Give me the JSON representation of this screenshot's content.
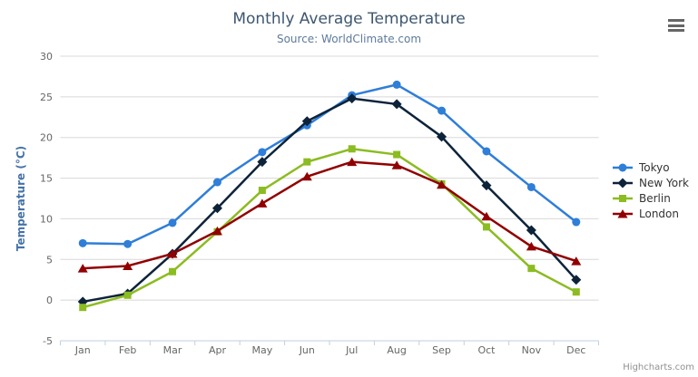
{
  "chart_data": {
    "type": "line",
    "title": "Monthly Average Temperature",
    "subtitle": "Source: WorldClimate.com",
    "xlabel": "",
    "ylabel": "Temperature (°C)",
    "categories": [
      "Jan",
      "Feb",
      "Mar",
      "Apr",
      "May",
      "Jun",
      "Jul",
      "Aug",
      "Sep",
      "Oct",
      "Nov",
      "Dec"
    ],
    "ylim": [
      -5,
      30
    ],
    "ytick_interval": 5,
    "yticks": [
      -5,
      0,
      5,
      10,
      15,
      20,
      25,
      30
    ],
    "grid": true,
    "legend_position": "right",
    "series": [
      {
        "name": "Tokyo",
        "color": "#2f7ed8",
        "marker": "circle",
        "values": [
          7.0,
          6.9,
          9.5,
          14.5,
          18.2,
          21.5,
          25.2,
          26.5,
          23.3,
          18.3,
          13.9,
          9.6
        ]
      },
      {
        "name": "New York",
        "color": "#0d233a",
        "marker": "diamond",
        "values": [
          -0.2,
          0.8,
          5.7,
          11.3,
          17.0,
          22.0,
          24.8,
          24.1,
          20.1,
          14.1,
          8.6,
          2.5
        ]
      },
      {
        "name": "Berlin",
        "color": "#8bbc21",
        "marker": "square",
        "values": [
          -0.9,
          0.6,
          3.5,
          8.4,
          13.5,
          17.0,
          18.6,
          17.9,
          14.3,
          9.0,
          3.9,
          1.0
        ]
      },
      {
        "name": "London",
        "color": "#910000",
        "marker": "triangle",
        "values": [
          3.9,
          4.2,
          5.7,
          8.5,
          11.9,
          15.2,
          17.0,
          16.6,
          14.2,
          10.3,
          6.6,
          4.8
        ]
      }
    ]
  },
  "toolbar": {
    "context_menu_icon": "hamburger-icon"
  },
  "credit": {
    "label": "Highcharts.com"
  },
  "colors": {
    "title": "#3E576F",
    "subtitle": "#5d7a9c",
    "axis_title": "#4572A7",
    "axis_label": "#666666",
    "grid_line": "#D8D8D8",
    "axis_line": "#C0D0E0",
    "legend_text": "#333333",
    "credit_text": "#909090",
    "menu_icon": "#666666"
  }
}
